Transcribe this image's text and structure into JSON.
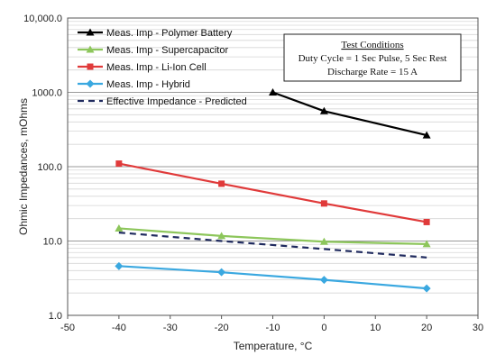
{
  "chart_data": {
    "type": "line",
    "xlabel": "Temperature, °C",
    "ylabel": "Ohmic Impedances, mOhms",
    "xlim": [
      -50,
      30
    ],
    "ylim": [
      1,
      10000
    ],
    "y_scale": "log",
    "grid": true,
    "x_ticks": [
      "-50",
      "-40",
      "-30",
      "-20",
      "-10",
      "0",
      "10",
      "20",
      "30"
    ],
    "y_ticks": [
      "1.0",
      "10.0",
      "100.0",
      "1000.0",
      "10,000.0"
    ],
    "legend_position": "top-left",
    "series": [
      {
        "name": "Meas. Imp - Polymer Battery",
        "color": "#000000",
        "marker": "triangle",
        "dashed": false,
        "points": [
          [
            -10,
            1000
          ],
          [
            0,
            560
          ],
          [
            20,
            265
          ]
        ]
      },
      {
        "name": "Meas. Imp - Supercapacitor",
        "color": "#8dc65b",
        "marker": "triangle",
        "dashed": false,
        "points": [
          [
            -40,
            14.8
          ],
          [
            -20,
            11.7
          ],
          [
            0,
            9.8
          ],
          [
            20,
            9.1
          ]
        ]
      },
      {
        "name": "Meas. Imp - Li-Ion Cell",
        "color": "#e03a3a",
        "marker": "square",
        "dashed": false,
        "points": [
          [
            -40,
            110
          ],
          [
            -20,
            59
          ],
          [
            0,
            32
          ],
          [
            20,
            18
          ]
        ]
      },
      {
        "name": "Meas. Imp - Hybrid",
        "color": "#3aa8e0",
        "marker": "diamond",
        "dashed": false,
        "points": [
          [
            -40,
            4.6
          ],
          [
            -20,
            3.8
          ],
          [
            0,
            3.0
          ],
          [
            20,
            2.3
          ]
        ]
      },
      {
        "name": "Effective Impedance - Predicted",
        "color": "#1f2a5e",
        "marker": "none",
        "dashed": true,
        "points": [
          [
            -40,
            13
          ],
          [
            -20,
            10
          ],
          [
            0,
            7.8
          ],
          [
            20,
            6.0
          ]
        ]
      }
    ],
    "annotation": {
      "title": "Test Conditions",
      "lines": [
        "Duty Cycle = 1 Sec Pulse, 5 Sec Rest",
        "Discharge Rate  = 15 A"
      ]
    }
  }
}
